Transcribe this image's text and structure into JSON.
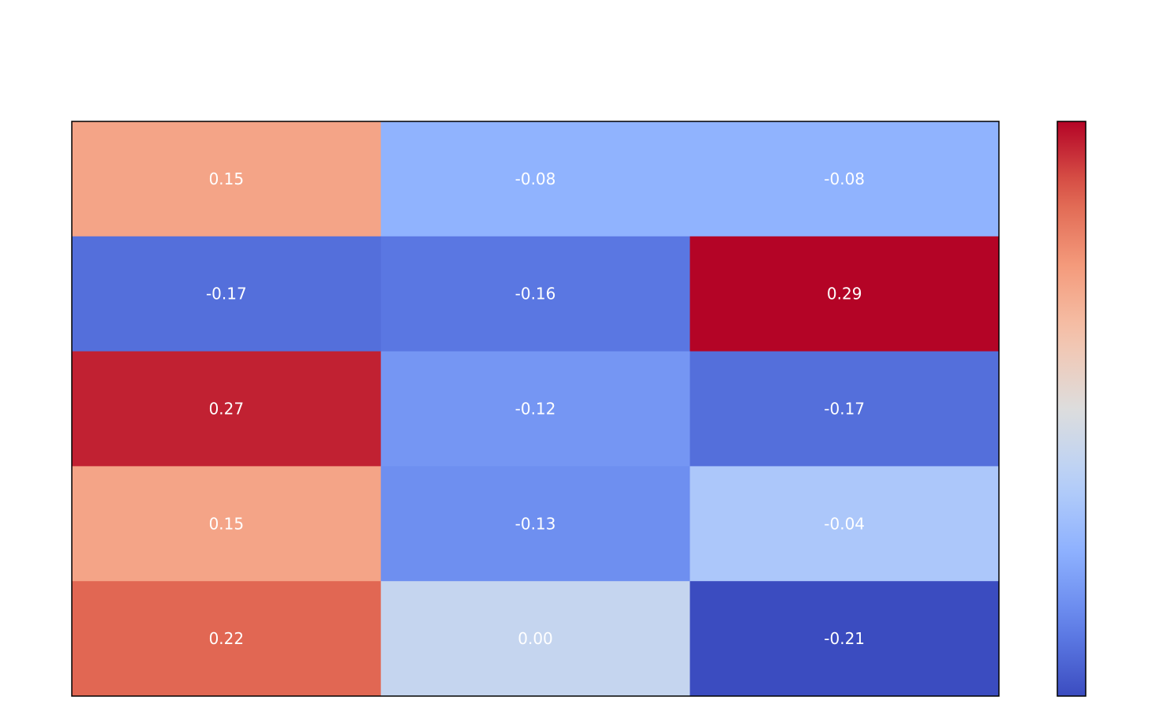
{
  "chart_data": {
    "type": "heatmap",
    "title": "",
    "xlabel": "",
    "ylabel": "",
    "colormap": "coolwarm",
    "vmin": -0.21,
    "vmax": 0.29,
    "values": [
      [
        0.15,
        -0.08,
        -0.08
      ],
      [
        -0.17,
        -0.16,
        0.29
      ],
      [
        0.27,
        -0.12,
        -0.17
      ],
      [
        0.15,
        -0.13,
        -0.04
      ],
      [
        0.22,
        0.0,
        -0.21
      ]
    ],
    "labels": [
      [
        "0.15",
        "-0.08",
        "-0.08"
      ],
      [
        "-0.17",
        "-0.16",
        "0.29"
      ],
      [
        "0.27",
        "-0.12",
        "-0.17"
      ],
      [
        "0.15",
        "-0.13",
        "-0.04"
      ],
      [
        "0.22",
        "0.00",
        "-0.21"
      ]
    ],
    "colorbar": true,
    "grid": false
  },
  "colors": {
    "label": "#ffffff",
    "frame": "#000000",
    "background": "#ffffff"
  }
}
